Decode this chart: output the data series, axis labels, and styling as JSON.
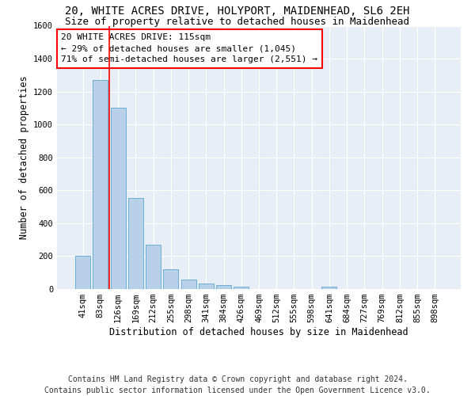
{
  "title": "20, WHITE ACRES DRIVE, HOLYPORT, MAIDENHEAD, SL6 2EH",
  "subtitle": "Size of property relative to detached houses in Maidenhead",
  "xlabel": "Distribution of detached houses by size in Maidenhead",
  "ylabel": "Number of detached properties",
  "footer_line1": "Contains HM Land Registry data © Crown copyright and database right 2024.",
  "footer_line2": "Contains public sector information licensed under the Open Government Licence v3.0.",
  "bar_labels": [
    "41sqm",
    "83sqm",
    "126sqm",
    "169sqm",
    "212sqm",
    "255sqm",
    "298sqm",
    "341sqm",
    "384sqm",
    "426sqm",
    "469sqm",
    "512sqm",
    "555sqm",
    "598sqm",
    "641sqm",
    "684sqm",
    "727sqm",
    "769sqm",
    "812sqm",
    "855sqm",
    "898sqm"
  ],
  "bar_values": [
    200,
    1270,
    1100,
    555,
    270,
    120,
    60,
    35,
    25,
    15,
    0,
    0,
    0,
    0,
    15,
    0,
    0,
    0,
    0,
    0,
    0
  ],
  "bar_color": "#b8d0e8",
  "bar_edge_color": "#6baed6",
  "vline_color": "red",
  "vline_x": 1.5,
  "annotation_text": "20 WHITE ACRES DRIVE: 115sqm\n← 29% of detached houses are smaller (1,045)\n71% of semi-detached houses are larger (2,551) →",
  "annotation_box_color": "white",
  "annotation_box_edge_color": "red",
  "ylim": [
    0,
    1600
  ],
  "yticks": [
    0,
    200,
    400,
    600,
    800,
    1000,
    1200,
    1400,
    1600
  ],
  "bg_color": "#e8eef5",
  "grid_color": "white",
  "title_fontsize": 10,
  "subtitle_fontsize": 9,
  "axis_label_fontsize": 8.5,
  "tick_fontsize": 7.5,
  "annotation_fontsize": 8,
  "footer_fontsize": 7
}
